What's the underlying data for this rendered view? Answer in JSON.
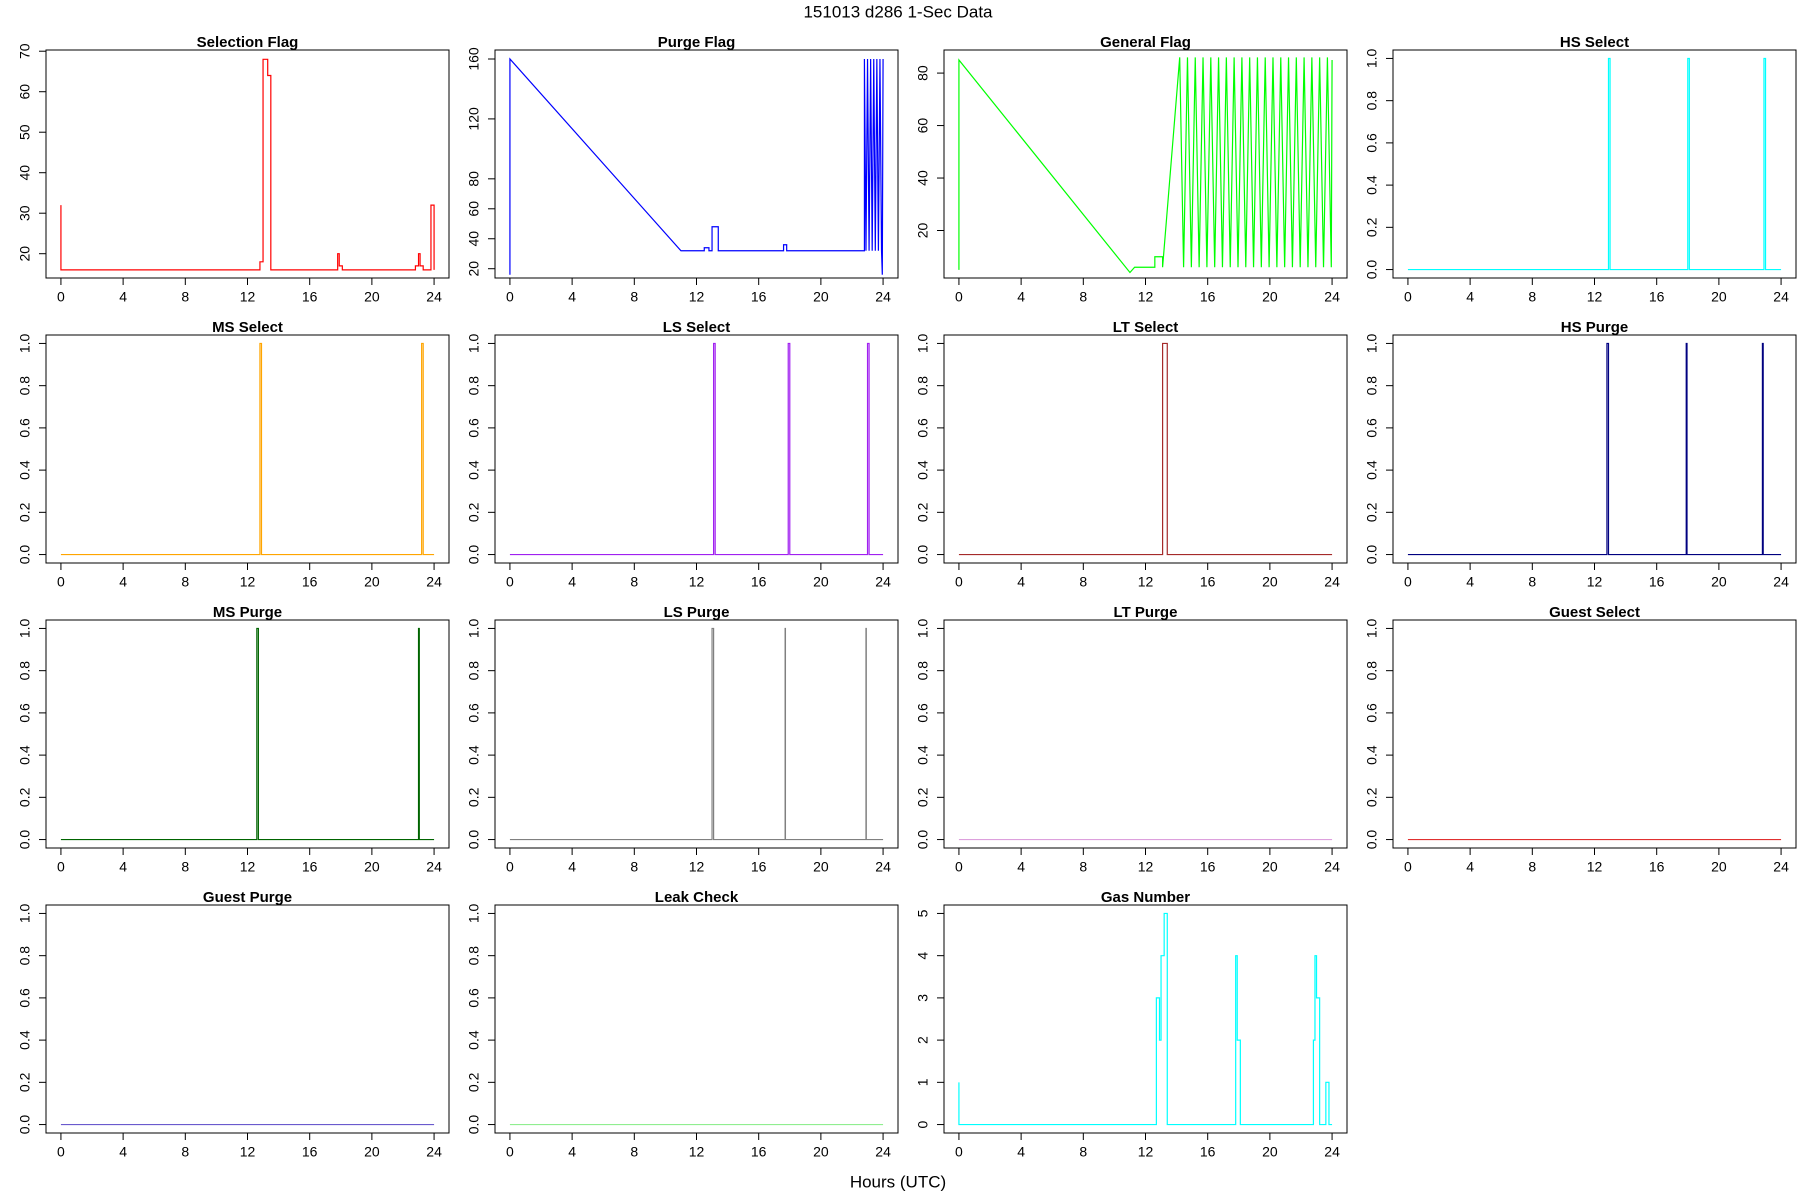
{
  "title": "151013   d286   1-Sec Data",
  "xlabel": "Hours (UTC)",
  "chart_data": [
    {
      "type": "line",
      "title": "Selection Flag",
      "color": "#ff0000",
      "xlim": [
        -0.96,
        24.96
      ],
      "xticks": [
        0,
        4,
        8,
        12,
        16,
        20,
        24
      ],
      "ylim": [
        14,
        70.3
      ],
      "yticks": [
        20,
        30,
        40,
        50,
        60,
        70
      ],
      "x": [
        0,
        0,
        12.8,
        12.8,
        13.0,
        13.0,
        13.3,
        13.3,
        13.5,
        13.5,
        17.8,
        17.8,
        17.9,
        17.9,
        18.1,
        18.1,
        22.8,
        22.8,
        23.0,
        23.0,
        23.1,
        23.1,
        23.3,
        23.3,
        23.8,
        23.8,
        24,
        24
      ],
      "values": [
        32,
        16,
        16,
        18,
        18,
        68,
        68,
        64,
        64,
        16,
        16,
        20,
        20,
        17,
        17,
        16,
        16,
        17,
        17,
        20,
        20,
        17,
        17,
        16,
        16,
        32,
        32,
        16
      ]
    },
    {
      "type": "line",
      "title": "Purge Flag",
      "color": "#0000ff",
      "xlim": [
        -0.96,
        24.96
      ],
      "xticks": [
        0,
        4,
        8,
        12,
        16,
        20,
        24
      ],
      "ylim": [
        13.8,
        166
      ],
      "yticks": [
        20,
        40,
        60,
        80,
        120,
        160
      ],
      "x": [
        0,
        0,
        11,
        12.5,
        12.5,
        12.8,
        12.8,
        13.0,
        13.0,
        13.4,
        13.4,
        17.6,
        17.6,
        17.8,
        17.8,
        22.8,
        22.8,
        22.9,
        23.0,
        23.1,
        23.2,
        23.3,
        23.4,
        23.5,
        23.6,
        23.7,
        23.8,
        23.9,
        23.95,
        24
      ],
      "values": [
        16,
        160,
        32,
        32,
        34,
        34,
        32,
        32,
        48,
        48,
        32,
        32,
        36,
        36,
        32,
        32,
        160,
        32,
        160,
        32,
        160,
        32,
        160,
        32,
        160,
        32,
        160,
        32,
        16,
        160
      ]
    },
    {
      "type": "line",
      "title": "General Flag",
      "color": "#00ff00",
      "xlim": [
        -0.96,
        24.96
      ],
      "xticks": [
        0,
        4,
        8,
        12,
        16,
        20,
        24
      ],
      "ylim": [
        1.9,
        88.8
      ],
      "yticks": [
        20,
        40,
        60,
        80
      ],
      "x": [
        0,
        0,
        11,
        11.3,
        12.6,
        12.6,
        13.1,
        13.1,
        14.2,
        14.45,
        14.7,
        14.95,
        15.2,
        15.45,
        15.7,
        15.95,
        16.2,
        16.45,
        16.7,
        16.95,
        17.2,
        17.45,
        17.7,
        17.95,
        18.2,
        18.45,
        18.7,
        18.95,
        19.2,
        19.45,
        19.7,
        19.95,
        20.2,
        20.45,
        20.7,
        20.95,
        21.2,
        21.45,
        21.7,
        21.95,
        22.2,
        22.45,
        22.7,
        22.95,
        23.2,
        23.45,
        23.7,
        23.95,
        24
      ],
      "values": [
        5,
        85,
        4,
        6,
        6,
        10,
        10,
        6,
        86,
        6,
        86,
        6,
        86,
        6,
        86,
        6,
        86,
        6,
        86,
        6,
        86,
        6,
        86,
        6,
        86,
        6,
        86,
        6,
        86,
        6,
        86,
        6,
        86,
        6,
        86,
        6,
        86,
        6,
        86,
        6,
        86,
        6,
        86,
        6,
        86,
        6,
        86,
        6,
        85
      ]
    },
    {
      "type": "line",
      "title": "HS Select",
      "color": "#00ffff",
      "xlim": [
        -0.96,
        24.96
      ],
      "xticks": [
        0,
        4,
        8,
        12,
        16,
        20,
        24
      ],
      "ylim": [
        -0.04,
        1.04
      ],
      "yticks": [
        {
          "value": 0,
          "label": "0.0"
        },
        0.2,
        0.4,
        0.6,
        0.8,
        {
          "value": 1,
          "label": "1.0"
        }
      ],
      "x": [
        0,
        12.9,
        12.9,
        13.0,
        13.0,
        18.0,
        18.0,
        18.1,
        18.1,
        22.9,
        22.9,
        23.0,
        23.0,
        24
      ],
      "values": [
        0,
        0,
        1,
        1,
        0,
        0,
        1,
        1,
        0,
        0,
        1,
        1,
        0,
        0
      ]
    },
    {
      "type": "line",
      "title": "MS Select",
      "color": "#ffa500",
      "xlim": [
        -0.96,
        24.96
      ],
      "xticks": [
        0,
        4,
        8,
        12,
        16,
        20,
        24
      ],
      "ylim": [
        -0.04,
        1.04
      ],
      "yticks": [
        {
          "value": 0,
          "label": "0.0"
        },
        0.2,
        0.4,
        0.6,
        0.8,
        {
          "value": 1,
          "label": "1.0"
        }
      ],
      "x": [
        0,
        12.8,
        12.8,
        12.9,
        12.9,
        23.2,
        23.2,
        23.3,
        23.3,
        24
      ],
      "values": [
        0,
        0,
        1,
        1,
        0,
        0,
        1,
        1,
        0,
        0
      ]
    },
    {
      "type": "line",
      "title": "LS Select",
      "color": "#a020f0",
      "xlim": [
        -0.96,
        24.96
      ],
      "xticks": [
        0,
        4,
        8,
        12,
        16,
        20,
        24
      ],
      "ylim": [
        -0.04,
        1.04
      ],
      "yticks": [
        {
          "value": 0,
          "label": "0.0"
        },
        0.2,
        0.4,
        0.6,
        0.8,
        {
          "value": 1,
          "label": "1.0"
        }
      ],
      "x": [
        0,
        13.1,
        13.1,
        13.2,
        13.2,
        17.9,
        17.9,
        18.0,
        18.0,
        23.0,
        23.0,
        23.1,
        23.1,
        24
      ],
      "values": [
        0,
        0,
        1,
        1,
        0,
        0,
        1,
        1,
        0,
        0,
        1,
        1,
        0,
        0
      ]
    },
    {
      "type": "line",
      "title": "LT Select",
      "color": "#a52a2a",
      "xlim": [
        -0.96,
        24.96
      ],
      "xticks": [
        0,
        4,
        8,
        12,
        16,
        20,
        24
      ],
      "ylim": [
        -0.04,
        1.04
      ],
      "yticks": [
        {
          "value": 0,
          "label": "0.0"
        },
        0.2,
        0.4,
        0.6,
        0.8,
        {
          "value": 1,
          "label": "1.0"
        }
      ],
      "x": [
        0,
        13.1,
        13.1,
        13.4,
        13.4,
        24
      ],
      "values": [
        0,
        0,
        1,
        1,
        0,
        0
      ]
    },
    {
      "type": "line",
      "title": "HS Purge",
      "color": "#000080",
      "xlim": [
        -0.96,
        24.96
      ],
      "xticks": [
        0,
        4,
        8,
        12,
        16,
        20,
        24
      ],
      "ylim": [
        -0.04,
        1.04
      ],
      "yticks": [
        {
          "value": 0,
          "label": "0.0"
        },
        0.2,
        0.4,
        0.6,
        0.8,
        {
          "value": 1,
          "label": "1.0"
        }
      ],
      "x": [
        0,
        12.8,
        12.8,
        12.9,
        12.9,
        17.9,
        17.9,
        17.95,
        17.95,
        22.8,
        22.8,
        22.85,
        22.85,
        24
      ],
      "values": [
        0,
        0,
        1,
        1,
        0,
        0,
        1,
        1,
        0,
        0,
        1,
        1,
        0,
        0
      ]
    },
    {
      "type": "line",
      "title": "MS Purge",
      "color": "#006400",
      "xlim": [
        -0.96,
        24.96
      ],
      "xticks": [
        0,
        4,
        8,
        12,
        16,
        20,
        24
      ],
      "ylim": [
        -0.04,
        1.04
      ],
      "yticks": [
        {
          "value": 0,
          "label": "0.0"
        },
        0.2,
        0.4,
        0.6,
        0.8,
        {
          "value": 1,
          "label": "1.0"
        }
      ],
      "x": [
        0,
        12.6,
        12.6,
        12.7,
        12.7,
        23.0,
        23.0,
        23.05,
        23.05,
        24
      ],
      "values": [
        0,
        0,
        1,
        1,
        0,
        0,
        1,
        1,
        0,
        0
      ]
    },
    {
      "type": "line",
      "title": "LS Purge",
      "color": "#808080",
      "xlim": [
        -0.96,
        24.96
      ],
      "xticks": [
        0,
        4,
        8,
        12,
        16,
        20,
        24
      ],
      "ylim": [
        -0.04,
        1.04
      ],
      "yticks": [
        {
          "value": 0,
          "label": "0.0"
        },
        0.2,
        0.4,
        0.6,
        0.8,
        {
          "value": 1,
          "label": "1.0"
        }
      ],
      "x": [
        0,
        13.0,
        13.0,
        13.1,
        13.1,
        17.7,
        17.7,
        17.72,
        17.72,
        22.9,
        22.9,
        22.92,
        22.92,
        24
      ],
      "values": [
        0,
        0,
        1,
        1,
        0,
        0,
        1,
        1,
        0,
        0,
        1,
        1,
        0,
        0
      ]
    },
    {
      "type": "line",
      "title": "LT Purge",
      "color": "#dda0dd",
      "xlim": [
        -0.96,
        24.96
      ],
      "xticks": [
        0,
        4,
        8,
        12,
        16,
        20,
        24
      ],
      "ylim": [
        -0.04,
        1.04
      ],
      "yticks": [
        {
          "value": 0,
          "label": "0.0"
        },
        0.2,
        0.4,
        0.6,
        0.8,
        {
          "value": 1,
          "label": "1.0"
        }
      ],
      "x": [
        0,
        24
      ],
      "values": [
        0,
        0
      ]
    },
    {
      "type": "line",
      "title": "Guest Select",
      "color": "#e03030",
      "xlim": [
        -0.96,
        24.96
      ],
      "xticks": [
        0,
        4,
        8,
        12,
        16,
        20,
        24
      ],
      "ylim": [
        -0.04,
        1.04
      ],
      "yticks": [
        {
          "value": 0,
          "label": "0.0"
        },
        0.2,
        0.4,
        0.6,
        0.8,
        {
          "value": 1,
          "label": "1.0"
        }
      ],
      "x": [
        0,
        24
      ],
      "values": [
        0,
        0
      ]
    },
    {
      "type": "line",
      "title": "Guest Purge",
      "color": "#6a5acd",
      "xlim": [
        -0.96,
        24.96
      ],
      "xticks": [
        0,
        4,
        8,
        12,
        16,
        20,
        24
      ],
      "ylim": [
        -0.04,
        1.04
      ],
      "yticks": [
        {
          "value": 0,
          "label": "0.0"
        },
        0.2,
        0.4,
        0.6,
        0.8,
        {
          "value": 1,
          "label": "1.0"
        }
      ],
      "x": [
        0,
        24
      ],
      "values": [
        0,
        0
      ]
    },
    {
      "type": "line",
      "title": "Leak Check",
      "color": "#90ee90",
      "xlim": [
        -0.96,
        24.96
      ],
      "xticks": [
        0,
        4,
        8,
        12,
        16,
        20,
        24
      ],
      "ylim": [
        -0.04,
        1.04
      ],
      "yticks": [
        {
          "value": 0,
          "label": "0.0"
        },
        0.2,
        0.4,
        0.6,
        0.8,
        {
          "value": 1,
          "label": "1.0"
        }
      ],
      "x": [
        0,
        24
      ],
      "values": [
        0,
        0
      ]
    },
    {
      "type": "line",
      "title": "Gas Number",
      "color": "#00ffff",
      "xlim": [
        -0.96,
        24.96
      ],
      "xticks": [
        0,
        4,
        8,
        12,
        16,
        20,
        24
      ],
      "ylim": [
        -0.2,
        5.2
      ],
      "yticks": [
        0,
        1,
        2,
        3,
        4,
        5
      ],
      "x": [
        0,
        0,
        12.7,
        12.7,
        12.9,
        12.9,
        13.0,
        13.0,
        13.2,
        13.2,
        13.4,
        13.4,
        17.8,
        17.8,
        17.9,
        17.9,
        18.1,
        18.1,
        22.8,
        22.8,
        22.9,
        22.9,
        23.0,
        23.0,
        23.2,
        23.2,
        23.6,
        23.6,
        23.8,
        23.8,
        24
      ],
      "values": [
        1,
        0,
        0,
        3,
        3,
        2,
        2,
        4,
        4,
        5,
        5,
        0,
        0,
        4,
        4,
        2,
        2,
        0,
        0,
        2,
        2,
        4,
        4,
        3,
        3,
        0,
        0,
        1,
        1,
        0,
        0
      ]
    }
  ]
}
